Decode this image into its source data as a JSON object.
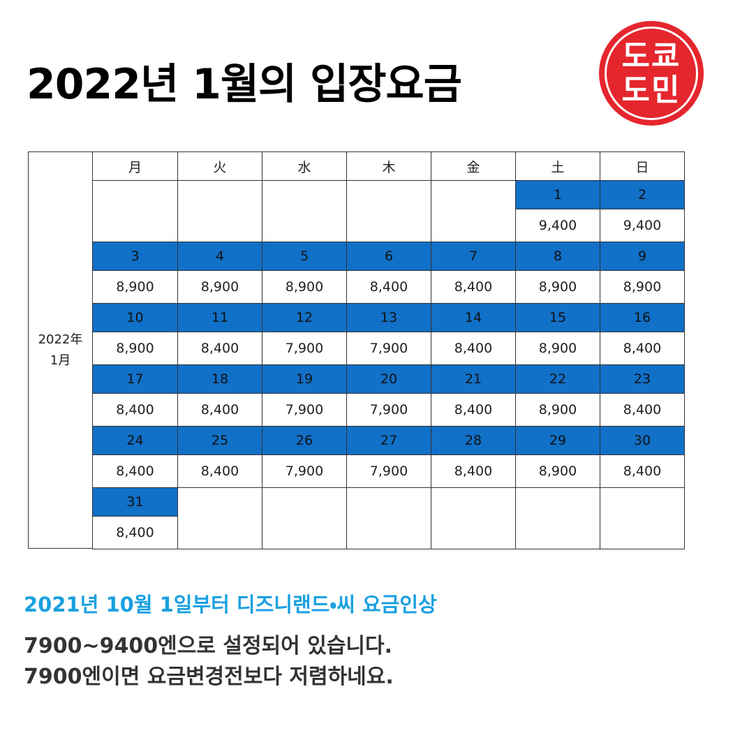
{
  "header": {
    "title": "2022년 1월의 입장요금",
    "logo": [
      "도쿄",
      "도민"
    ]
  },
  "table": {
    "side_label": [
      "2022年",
      "1月"
    ],
    "days": [
      "月",
      "火",
      "水",
      "木",
      "金",
      "土",
      "日"
    ],
    "weeks": [
      [
        null,
        null,
        null,
        null,
        null,
        {
          "date": "1",
          "price": "9,400"
        },
        {
          "date": "2",
          "price": "9,400"
        }
      ],
      [
        {
          "date": "3",
          "price": "8,900"
        },
        {
          "date": "4",
          "price": "8,900"
        },
        {
          "date": "5",
          "price": "8,900"
        },
        {
          "date": "6",
          "price": "8,400"
        },
        {
          "date": "7",
          "price": "8,400"
        },
        {
          "date": "8",
          "price": "8,900"
        },
        {
          "date": "9",
          "price": "8,900"
        }
      ],
      [
        {
          "date": "10",
          "price": "8,900"
        },
        {
          "date": "11",
          "price": "8,400"
        },
        {
          "date": "12",
          "price": "7,900"
        },
        {
          "date": "13",
          "price": "7,900"
        },
        {
          "date": "14",
          "price": "8,400"
        },
        {
          "date": "15",
          "price": "8,900"
        },
        {
          "date": "16",
          "price": "8,400"
        }
      ],
      [
        {
          "date": "17",
          "price": "8,400"
        },
        {
          "date": "18",
          "price": "8,400"
        },
        {
          "date": "19",
          "price": "7,900"
        },
        {
          "date": "20",
          "price": "7,900"
        },
        {
          "date": "21",
          "price": "8,400"
        },
        {
          "date": "22",
          "price": "8,900"
        },
        {
          "date": "23",
          "price": "8,400"
        }
      ],
      [
        {
          "date": "24",
          "price": "8,400"
        },
        {
          "date": "25",
          "price": "8,400"
        },
        {
          "date": "26",
          "price": "7,900"
        },
        {
          "date": "27",
          "price": "7,900"
        },
        {
          "date": "28",
          "price": "8,400"
        },
        {
          "date": "29",
          "price": "8,900"
        },
        {
          "date": "30",
          "price": "8,400"
        }
      ],
      [
        {
          "date": "31",
          "price": "8,400"
        },
        null,
        null,
        null,
        null,
        null,
        null
      ]
    ]
  },
  "footer": {
    "highlight": "2021년 10월 1일부터 디즈니랜드・씨 요금인상",
    "lines": [
      "7900~9400엔으로 설정되어 있습니다.",
      "7900엔이면 요금변경전보다 저렴하네요."
    ]
  }
}
